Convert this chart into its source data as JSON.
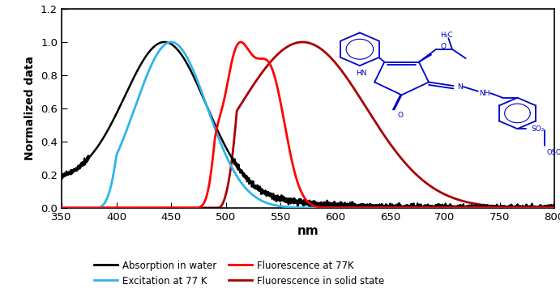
{
  "xlim": [
    350,
    800
  ],
  "ylim": [
    0,
    1.2
  ],
  "xticks": [
    350,
    400,
    450,
    500,
    550,
    600,
    650,
    700,
    750,
    800
  ],
  "yticks": [
    0,
    0.2,
    0.4,
    0.6,
    0.8,
    1.0,
    1.2
  ],
  "xlabel": "nm",
  "ylabel": "Normalized data",
  "legend": [
    {
      "label": "Absorption in water",
      "color": "#000000",
      "lw": 2.0
    },
    {
      "label": "Excitation at 77 K",
      "color": "#2EB5E8",
      "lw": 2.0
    },
    {
      "label": "Fluorescence at 77K",
      "color": "#FF0000",
      "lw": 2.0
    },
    {
      "label": "Fluorescence in solid state",
      "color": "#AA0000",
      "lw": 2.0
    }
  ],
  "background_color": "#FFFFFF",
  "colors": {
    "absorption": "#000000",
    "excitation": "#2EB5E8",
    "fluorescence77k": "#FF0000",
    "solid_state": "#AA0000"
  },
  "struct_color": "#0000CC"
}
